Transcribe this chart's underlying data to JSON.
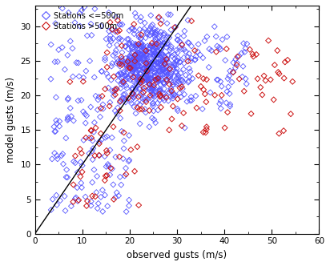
{
  "title": "",
  "xlabel": "observed gusts (m/s)",
  "ylabel": "model gusts (m/s)",
  "xlim": [
    0,
    60
  ],
  "ylim": [
    0,
    33
  ],
  "xticks": [
    0,
    10,
    20,
    30,
    40,
    50,
    60
  ],
  "yticks": [
    0,
    5,
    10,
    15,
    20,
    25,
    30
  ],
  "refline_x": [
    0,
    33
  ],
  "refline_y": [
    0,
    33
  ],
  "blue_color": "#5555ff",
  "red_color": "#cc1111",
  "background": "#ffffff",
  "legend_label_blue": "Stations <=500m",
  "legend_label_red": "Stations >500m",
  "marker_size": 3.5,
  "seed": 42
}
